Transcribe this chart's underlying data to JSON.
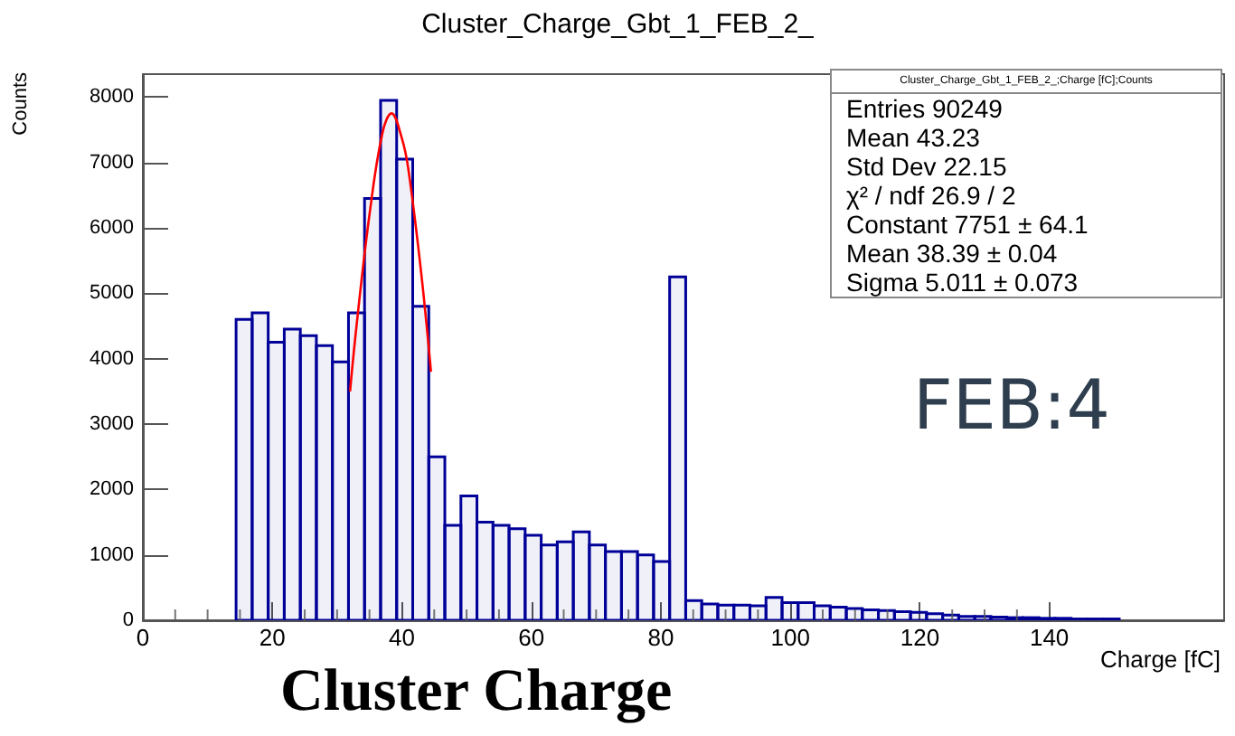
{
  "chart_data": {
    "type": "histogram",
    "title": "Cluster_Charge_Gbt_1_FEB_2_",
    "xlabel": "Charge [fC]",
    "ylabel": "Counts",
    "bins": [
      14.4,
      16.88,
      19.36,
      21.84,
      24.32,
      26.8,
      29.28,
      31.76,
      34.24,
      36.72,
      39.2,
      41.68,
      44.16,
      46.64,
      49.12,
      51.6,
      54.08,
      56.56,
      59.04,
      61.52,
      64,
      66.48,
      68.96,
      71.44,
      73.92,
      76.4,
      78.88,
      81.36,
      83.84,
      86.32,
      88.8,
      91.28,
      93.76,
      96.24,
      98.72,
      101.2,
      103.68,
      106.16,
      108.64,
      111.12,
      113.6,
      116.08,
      118.56,
      121.04,
      123.52,
      126,
      128.48,
      130.96,
      133.44,
      135.92,
      138.4,
      140.88,
      143.36,
      145.84,
      148.32,
      150.8
    ],
    "values": [
      4600,
      4700,
      4250,
      4450,
      4350,
      4200,
      3950,
      4700,
      6450,
      7950,
      7050,
      4800,
      2500,
      1450,
      1900,
      1500,
      1450,
      1400,
      1300,
      1150,
      1200,
      1350,
      1150,
      1050,
      1050,
      1000,
      900,
      5250,
      300,
      250,
      230,
      230,
      220,
      350,
      270,
      270,
      220,
      200,
      180,
      160,
      150,
      130,
      120,
      100,
      80,
      60,
      60,
      50,
      40,
      40,
      30,
      30,
      20,
      20,
      20
    ],
    "color": "#000099",
    "series": [
      {
        "type": "line",
        "color": "#ff0000",
        "x": [
          32,
          33,
          35,
          37,
          38.4,
          40,
          41,
          43,
          44.5
        ],
        "values": [
          3500,
          4500,
          6200,
          7450,
          7750,
          7370,
          6900,
          5300,
          3800
        ]
      }
    ],
    "marker": "none",
    "xlim": [
      0,
      167
    ],
    "xticks": [
      0,
      20,
      40,
      60,
      80,
      100,
      120,
      140
    ],
    "ylim": [
      0,
      8350
    ],
    "yticks": [
      0,
      1000,
      2000,
      3000,
      4000,
      5000,
      6000,
      7000,
      8000
    ],
    "grid": false,
    "annotations": [
      "Cluster_Charge_Gbt_1_FEB_2_;Charge [fC];Counts",
      "Entries 90249",
      "Mean 43.23",
      "Std Dev 22.15",
      "χ² / ndf 26.9 / 2",
      "Constant 7751 ± 64.1",
      "Mean 38.39 ± 0.04",
      "Sigma 5.011 ± 0.073",
      "FEB:4",
      "Cluster Charge"
    ]
  }
}
